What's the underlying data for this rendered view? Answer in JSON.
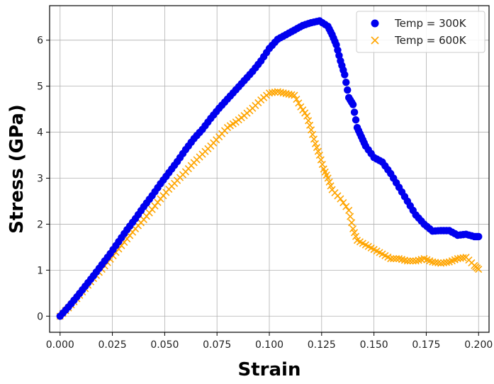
{
  "chart_data": {
    "type": "scatter",
    "title": "",
    "xlabel": "Strain",
    "ylabel": "Stress (GPa)",
    "xlim": [
      -0.005,
      0.205
    ],
    "ylim": [
      -0.35,
      6.75
    ],
    "xticks": [
      0.0,
      0.025,
      0.05,
      0.075,
      0.1,
      0.125,
      0.15,
      0.175,
      0.2
    ],
    "xtick_labels": [
      "0.000",
      "0.025",
      "0.050",
      "0.075",
      "0.100",
      "0.125",
      "0.150",
      "0.175",
      "0.200"
    ],
    "yticks": [
      0,
      1,
      2,
      3,
      4,
      5,
      6
    ],
    "ytick_labels": [
      "0",
      "1",
      "2",
      "3",
      "4",
      "5",
      "6"
    ],
    "grid": true,
    "legend_position": "top-right",
    "series": [
      {
        "name": "Temp = 300K",
        "marker": "circle",
        "color": "#0000ee",
        "points": [
          [
            0.0,
            0.0
          ],
          [
            0.004,
            0.2
          ],
          [
            0.008,
            0.42
          ],
          [
            0.012,
            0.65
          ],
          [
            0.016,
            0.88
          ],
          [
            0.02,
            1.12
          ],
          [
            0.024,
            1.36
          ],
          [
            0.028,
            1.62
          ],
          [
            0.032,
            1.88
          ],
          [
            0.036,
            2.12
          ],
          [
            0.04,
            2.38
          ],
          [
            0.044,
            2.62
          ],
          [
            0.048,
            2.88
          ],
          [
            0.052,
            3.12
          ],
          [
            0.056,
            3.36
          ],
          [
            0.06,
            3.62
          ],
          [
            0.064,
            3.86
          ],
          [
            0.068,
            4.06
          ],
          [
            0.072,
            4.3
          ],
          [
            0.076,
            4.52
          ],
          [
            0.08,
            4.72
          ],
          [
            0.084,
            4.92
          ],
          [
            0.088,
            5.12
          ],
          [
            0.092,
            5.32
          ],
          [
            0.096,
            5.55
          ],
          [
            0.1,
            5.82
          ],
          [
            0.104,
            6.02
          ],
          [
            0.108,
            6.12
          ],
          [
            0.112,
            6.22
          ],
          [
            0.116,
            6.32
          ],
          [
            0.12,
            6.38
          ],
          [
            0.124,
            6.42
          ],
          [
            0.128,
            6.3
          ],
          [
            0.13,
            6.12
          ],
          [
            0.132,
            5.9
          ],
          [
            0.134,
            5.55
          ],
          [
            0.136,
            5.25
          ],
          [
            0.138,
            4.75
          ],
          [
            0.14,
            4.6
          ],
          [
            0.142,
            4.1
          ],
          [
            0.144,
            3.9
          ],
          [
            0.146,
            3.7
          ],
          [
            0.15,
            3.45
          ],
          [
            0.154,
            3.35
          ],
          [
            0.158,
            3.1
          ],
          [
            0.162,
            2.8
          ],
          [
            0.166,
            2.5
          ],
          [
            0.17,
            2.2
          ],
          [
            0.174,
            2.0
          ],
          [
            0.178,
            1.85
          ],
          [
            0.182,
            1.86
          ],
          [
            0.186,
            1.86
          ],
          [
            0.19,
            1.76
          ],
          [
            0.194,
            1.78
          ],
          [
            0.198,
            1.73
          ],
          [
            0.2,
            1.73
          ]
        ]
      },
      {
        "name": "Temp = 600K",
        "marker": "x",
        "color": "#ffa500",
        "points": [
          [
            0.0,
            0.0
          ],
          [
            0.004,
            0.18
          ],
          [
            0.008,
            0.38
          ],
          [
            0.012,
            0.6
          ],
          [
            0.016,
            0.82
          ],
          [
            0.02,
            1.02
          ],
          [
            0.024,
            1.24
          ],
          [
            0.028,
            1.46
          ],
          [
            0.032,
            1.68
          ],
          [
            0.036,
            1.9
          ],
          [
            0.04,
            2.1
          ],
          [
            0.044,
            2.32
          ],
          [
            0.048,
            2.55
          ],
          [
            0.052,
            2.76
          ],
          [
            0.056,
            2.95
          ],
          [
            0.06,
            3.14
          ],
          [
            0.064,
            3.34
          ],
          [
            0.068,
            3.52
          ],
          [
            0.072,
            3.7
          ],
          [
            0.076,
            3.9
          ],
          [
            0.08,
            4.1
          ],
          [
            0.084,
            4.22
          ],
          [
            0.088,
            4.36
          ],
          [
            0.092,
            4.52
          ],
          [
            0.096,
            4.7
          ],
          [
            0.1,
            4.85
          ],
          [
            0.104,
            4.88
          ],
          [
            0.108,
            4.84
          ],
          [
            0.112,
            4.8
          ],
          [
            0.115,
            4.55
          ],
          [
            0.118,
            4.35
          ],
          [
            0.12,
            4.05
          ],
          [
            0.122,
            3.75
          ],
          [
            0.124,
            3.5
          ],
          [
            0.126,
            3.2
          ],
          [
            0.128,
            3.0
          ],
          [
            0.13,
            2.75
          ],
          [
            0.134,
            2.55
          ],
          [
            0.138,
            2.3
          ],
          [
            0.14,
            1.9
          ],
          [
            0.142,
            1.65
          ],
          [
            0.146,
            1.55
          ],
          [
            0.15,
            1.45
          ],
          [
            0.154,
            1.35
          ],
          [
            0.158,
            1.25
          ],
          [
            0.162,
            1.25
          ],
          [
            0.166,
            1.2
          ],
          [
            0.17,
            1.2
          ],
          [
            0.174,
            1.25
          ],
          [
            0.178,
            1.18
          ],
          [
            0.182,
            1.15
          ],
          [
            0.186,
            1.18
          ],
          [
            0.19,
            1.25
          ],
          [
            0.194,
            1.28
          ],
          [
            0.198,
            1.1
          ],
          [
            0.2,
            1.02
          ]
        ]
      }
    ]
  }
}
